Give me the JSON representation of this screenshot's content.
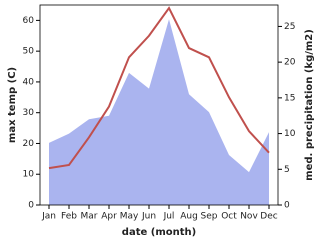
{
  "chart_data": {
    "type": "line-area",
    "x_label": "date (month)",
    "y_label": "max temp (C)",
    "y2_label": "med. precipitation (kg/m2)",
    "categories": [
      "Jan",
      "Feb",
      "Mar",
      "Apr",
      "May",
      "Jun",
      "Jul",
      "Aug",
      "Sep",
      "Oct",
      "Nov",
      "Dec"
    ],
    "series": [
      {
        "name": "max temp",
        "color": "#c0504d",
        "values": [
          12,
          13,
          22,
          32,
          48,
          55,
          64,
          51,
          48,
          35,
          24,
          17
        ]
      },
      {
        "name": "med. precipitation",
        "color": "#aab4ef",
        "axis": "y2",
        "values": [
          8.7,
          10,
          12,
          12.5,
          18.5,
          16.3,
          26,
          15.5,
          13,
          7,
          4.6,
          10.2
        ]
      }
    ],
    "ylim": [
      0,
      65
    ],
    "yticks": [
      0,
      10,
      20,
      30,
      40,
      50,
      60
    ],
    "y2lim": [
      0,
      28
    ],
    "y2ticks": [
      0,
      5,
      10,
      15,
      20,
      25
    ]
  }
}
